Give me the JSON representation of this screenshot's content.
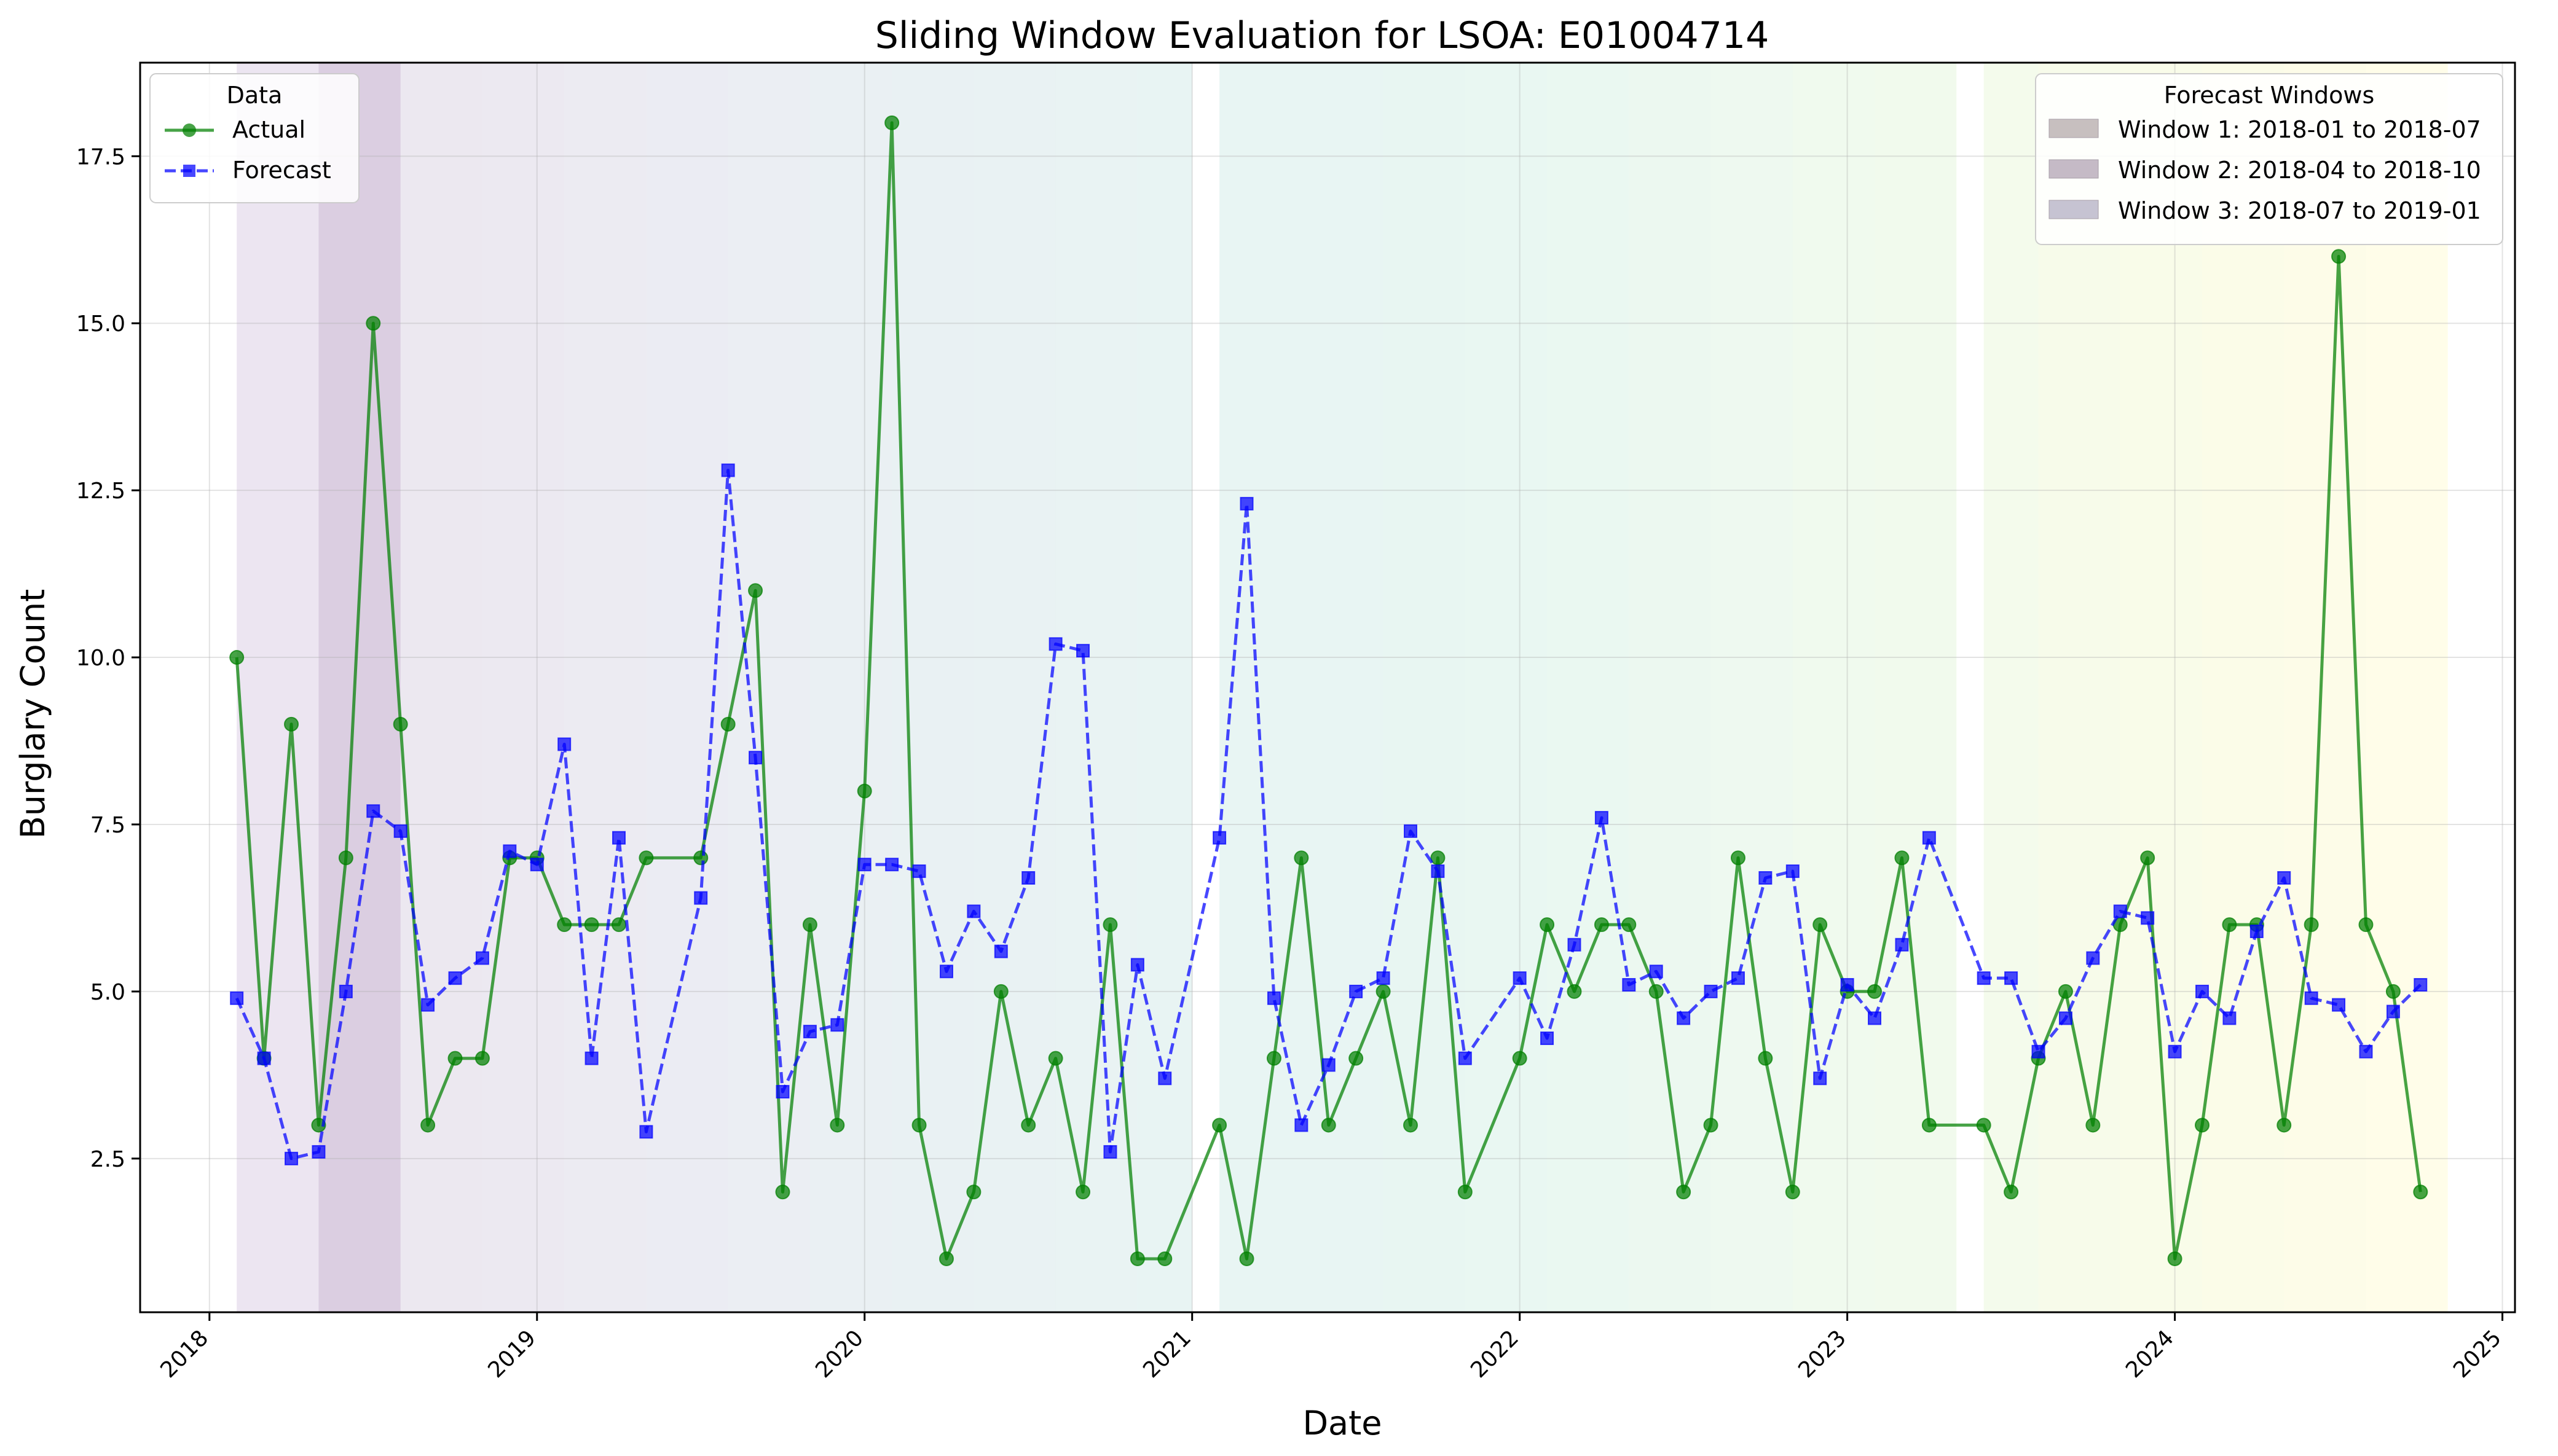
{
  "chart_data": {
    "type": "line",
    "title": "Sliding Window Evaluation for LSOA: E01004714",
    "xlabel": "Date",
    "ylabel": "Burglary Count",
    "x_ticks": [
      "2018",
      "2019",
      "2020",
      "2021",
      "2022",
      "2023",
      "2024",
      "2025"
    ],
    "y_ticks": [
      "2.5",
      "5.0",
      "7.5",
      "10.0",
      "12.5",
      "15.0",
      "17.5"
    ],
    "xlim": [
      "2017-10-15",
      "2025-01-15"
    ],
    "ylim": [
      0.2,
      18.9
    ],
    "grid": true,
    "series": [
      {
        "name": "Actual",
        "style": "solid line, circle markers",
        "color": "#008000",
        "points": [
          [
            "2018-02",
            10
          ],
          [
            "2018-03",
            4
          ],
          [
            "2018-04",
            9
          ],
          [
            "2018-05",
            3
          ],
          [
            "2018-06",
            7
          ],
          [
            "2018-07",
            15
          ],
          [
            "2018-08",
            9
          ],
          [
            "2018-09",
            3
          ],
          [
            "2018-10",
            4
          ],
          [
            "2018-11",
            4
          ],
          [
            "2018-12",
            7
          ],
          [
            "2019-01",
            7
          ],
          [
            "2019-02",
            6
          ],
          [
            "2019-03",
            6
          ],
          [
            "2019-04",
            6
          ],
          [
            "2019-05",
            7
          ],
          [
            "2019-07",
            7
          ],
          [
            "2019-08",
            9
          ],
          [
            "2019-09",
            11
          ],
          [
            "2019-10",
            2
          ],
          [
            "2019-11",
            6
          ],
          [
            "2019-12",
            3
          ],
          [
            "2020-01",
            8
          ],
          [
            "2020-02",
            18
          ],
          [
            "2020-03",
            3
          ],
          [
            "2020-04",
            1
          ],
          [
            "2020-05",
            2
          ],
          [
            "2020-06",
            5
          ],
          [
            "2020-07",
            3
          ],
          [
            "2020-08",
            4
          ],
          [
            "2020-09",
            2
          ],
          [
            "2020-10",
            6
          ],
          [
            "2020-11",
            1
          ],
          [
            "2020-12",
            1
          ],
          [
            "2021-02",
            3
          ],
          [
            "2021-03",
            1
          ],
          [
            "2021-04",
            4
          ],
          [
            "2021-05",
            7
          ],
          [
            "2021-06",
            3
          ],
          [
            "2021-07",
            4
          ],
          [
            "2021-08",
            5
          ],
          [
            "2021-09",
            3
          ],
          [
            "2021-10",
            7
          ],
          [
            "2021-11",
            2
          ],
          [
            "2022-01",
            4
          ],
          [
            "2022-02",
            6
          ],
          [
            "2022-03",
            5
          ],
          [
            "2022-04",
            6
          ],
          [
            "2022-05",
            6
          ],
          [
            "2022-06",
            5
          ],
          [
            "2022-07",
            2
          ],
          [
            "2022-08",
            3
          ],
          [
            "2022-09",
            7
          ],
          [
            "2022-10",
            4
          ],
          [
            "2022-11",
            2
          ],
          [
            "2022-12",
            6
          ],
          [
            "2023-01",
            5
          ],
          [
            "2023-02",
            5
          ],
          [
            "2023-03",
            7
          ],
          [
            "2023-04",
            3
          ],
          [
            "2023-06",
            3
          ],
          [
            "2023-07",
            2
          ],
          [
            "2023-08",
            4
          ],
          [
            "2023-09",
            5
          ],
          [
            "2023-10",
            3
          ],
          [
            "2023-11",
            6
          ],
          [
            "2023-12",
            7
          ],
          [
            "2024-01",
            1
          ],
          [
            "2024-02",
            3
          ],
          [
            "2024-03",
            6
          ],
          [
            "2024-04",
            6
          ],
          [
            "2024-05",
            3
          ],
          [
            "2024-06",
            6
          ],
          [
            "2024-07",
            16
          ],
          [
            "2024-08",
            6
          ],
          [
            "2024-09",
            5
          ],
          [
            "2024-10",
            2
          ]
        ]
      },
      {
        "name": "Forecast",
        "style": "dashed line, square markers",
        "color": "#0000ff",
        "points": [
          [
            "2018-02",
            4.9
          ],
          [
            "2018-03",
            4.0
          ],
          [
            "2018-04",
            2.5
          ],
          [
            "2018-05",
            2.6
          ],
          [
            "2018-06",
            5.0
          ],
          [
            "2018-07",
            7.7
          ],
          [
            "2018-08",
            7.4
          ],
          [
            "2018-09",
            4.8
          ],
          [
            "2018-10",
            5.2
          ],
          [
            "2018-11",
            5.5
          ],
          [
            "2018-12",
            7.1
          ],
          [
            "2019-01",
            6.9
          ],
          [
            "2019-02",
            8.7
          ],
          [
            "2019-03",
            4.0
          ],
          [
            "2019-04",
            7.3
          ],
          [
            "2019-05",
            2.9
          ],
          [
            "2019-07",
            6.4
          ],
          [
            "2019-08",
            12.8
          ],
          [
            "2019-09",
            8.5
          ],
          [
            "2019-10",
            3.5
          ],
          [
            "2019-11",
            4.4
          ],
          [
            "2019-12",
            4.5
          ],
          [
            "2020-01",
            6.9
          ],
          [
            "2020-02",
            6.9
          ],
          [
            "2020-03",
            6.8
          ],
          [
            "2020-04",
            5.3
          ],
          [
            "2020-05",
            6.2
          ],
          [
            "2020-06",
            5.6
          ],
          [
            "2020-07",
            6.7
          ],
          [
            "2020-08",
            10.2
          ],
          [
            "2020-09",
            10.1
          ],
          [
            "2020-10",
            2.6
          ],
          [
            "2020-11",
            5.4
          ],
          [
            "2020-12",
            3.7
          ],
          [
            "2021-02",
            7.3
          ],
          [
            "2021-03",
            12.3
          ],
          [
            "2021-04",
            4.9
          ],
          [
            "2021-05",
            3.0
          ],
          [
            "2021-06",
            3.9
          ],
          [
            "2021-07",
            5.0
          ],
          [
            "2021-08",
            5.2
          ],
          [
            "2021-09",
            7.4
          ],
          [
            "2021-10",
            6.8
          ],
          [
            "2021-11",
            4.0
          ],
          [
            "2022-01",
            5.2
          ],
          [
            "2022-02",
            4.3
          ],
          [
            "2022-03",
            5.7
          ],
          [
            "2022-04",
            7.6
          ],
          [
            "2022-05",
            5.1
          ],
          [
            "2022-06",
            5.3
          ],
          [
            "2022-07",
            4.6
          ],
          [
            "2022-08",
            5.0
          ],
          [
            "2022-09",
            5.2
          ],
          [
            "2022-10",
            6.7
          ],
          [
            "2022-11",
            6.8
          ],
          [
            "2022-12",
            3.7
          ],
          [
            "2023-01",
            5.1
          ],
          [
            "2023-02",
            4.6
          ],
          [
            "2023-03",
            5.7
          ],
          [
            "2023-04",
            7.3
          ],
          [
            "2023-06",
            5.2
          ],
          [
            "2023-07",
            5.2
          ],
          [
            "2023-08",
            4.1
          ],
          [
            "2023-09",
            4.6
          ],
          [
            "2023-10",
            5.5
          ],
          [
            "2023-11",
            6.2
          ],
          [
            "2023-12",
            6.1
          ],
          [
            "2024-01",
            4.1
          ],
          [
            "2024-02",
            5.0
          ],
          [
            "2024-03",
            4.6
          ],
          [
            "2024-04",
            5.9
          ],
          [
            "2024-05",
            6.7
          ],
          [
            "2024-06",
            4.9
          ],
          [
            "2024-07",
            4.8
          ],
          [
            "2024-08",
            4.1
          ],
          [
            "2024-09",
            4.7
          ],
          [
            "2024-10",
            5.1
          ]
        ]
      }
    ],
    "forecast_windows": [
      {
        "start": "2018-02",
        "end": "2018-07",
        "color": "#44017a"
      },
      {
        "start": "2018-05",
        "end": "2018-07",
        "color": "#46085c"
      },
      {
        "start": "2018-08",
        "end": "2018-10",
        "color": "#481a6c"
      },
      {
        "start": "2018-11",
        "end": "2019-01",
        "color": "#482878"
      },
      {
        "start": "2019-02",
        "end": "2019-04",
        "color": "#443a83"
      },
      {
        "start": "2019-05",
        "end": "2019-07",
        "color": "#3e4989"
      },
      {
        "start": "2019-08",
        "end": "2019-10",
        "color": "#38588c"
      },
      {
        "start": "2019-11",
        "end": "2020-01",
        "color": "#31688e"
      },
      {
        "start": "2020-02",
        "end": "2020-04",
        "color": "#2c728e"
      },
      {
        "start": "2020-05",
        "end": "2020-07",
        "color": "#287d8e"
      },
      {
        "start": "2020-08",
        "end": "2020-10",
        "color": "#25858e"
      },
      {
        "start": "2020-11",
        "end": "2020-12",
        "color": "#21918c"
      },
      {
        "start": "2021-02",
        "end": "2021-04",
        "color": "#1f9a8a"
      },
      {
        "start": "2021-05",
        "end": "2021-07",
        "color": "#1fa088"
      },
      {
        "start": "2021-08",
        "end": "2021-10",
        "color": "#22a884"
      },
      {
        "start": "2021-11",
        "end": "2022-01",
        "color": "#2ab07f"
      },
      {
        "start": "2022-02",
        "end": "2022-04",
        "color": "#35b779"
      },
      {
        "start": "2022-05",
        "end": "2022-07",
        "color": "#44bf70"
      },
      {
        "start": "2022-08",
        "end": "2022-10",
        "color": "#54c568"
      },
      {
        "start": "2022-11",
        "end": "2023-01",
        "color": "#6ccd5a"
      },
      {
        "start": "2023-02",
        "end": "2023-04",
        "color": "#7ad151"
      },
      {
        "start": "2023-06",
        "end": "2023-07",
        "color": "#95d840"
      },
      {
        "start": "2023-08",
        "end": "2023-10",
        "color": "#addc30"
      },
      {
        "start": "2023-11",
        "end": "2024-01",
        "color": "#c2df23"
      },
      {
        "start": "2024-02",
        "end": "2024-04",
        "color": "#d8e219"
      },
      {
        "start": "2024-05",
        "end": "2024-07",
        "color": "#f0e51c"
      },
      {
        "start": "2024-08",
        "end": "2024-10",
        "color": "#fde725"
      }
    ],
    "legend_data": {
      "title": "Data",
      "position": "upper left",
      "items": [
        "Actual",
        "Forecast"
      ]
    },
    "legend_windows": {
      "title": "Forecast Windows",
      "position": "upper right",
      "items": [
        {
          "label": "Window 1: 2018-01 to 2018-07",
          "color": "#c7bfbf"
        },
        {
          "label": "Window 2: 2018-04 to 2018-10",
          "color": "#c5bac6"
        },
        {
          "label": "Window 3: 2018-07 to 2019-01",
          "color": "#c6c3d2"
        }
      ]
    }
  }
}
